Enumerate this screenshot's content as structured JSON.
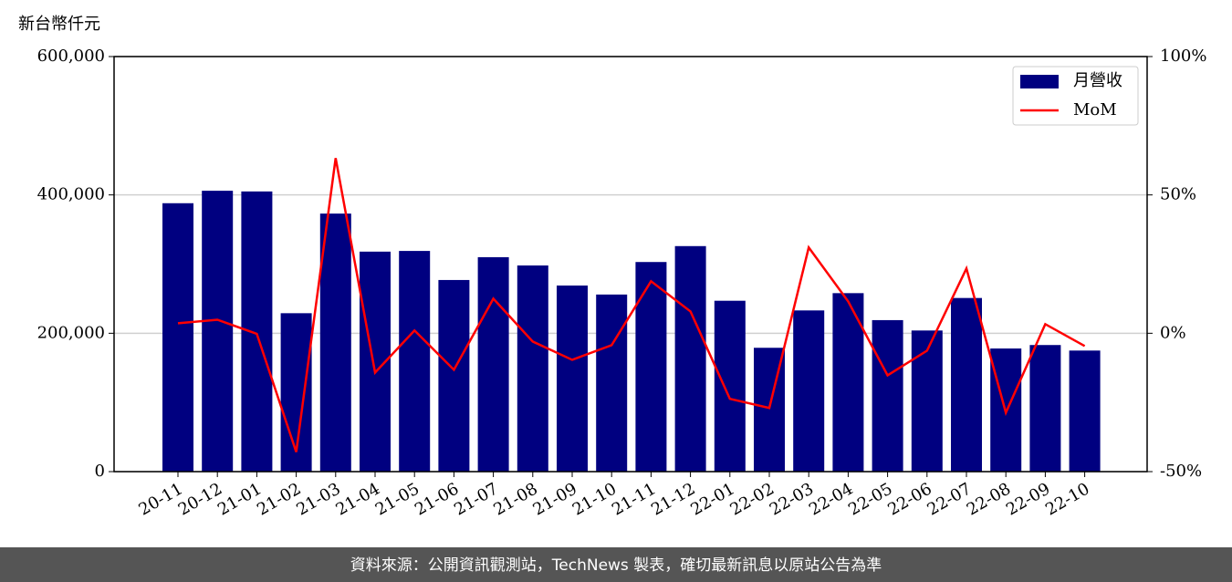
{
  "chart_data": {
    "type": "bar_line",
    "ylabel": "新台幣仟元",
    "footer": "資料來源：公開資訊觀測站，TechNews 製表，確切最新訊息以原站公告為準",
    "categories": [
      "20-11",
      "20-12",
      "21-01",
      "21-02",
      "21-03",
      "21-04",
      "21-05",
      "21-06",
      "21-07",
      "21-08",
      "21-09",
      "21-10",
      "21-11",
      "21-12",
      "22-01",
      "22-02",
      "22-03",
      "22-04",
      "22-05",
      "22-06",
      "22-07",
      "22-08",
      "22-09",
      "22-10"
    ],
    "series": [
      {
        "name": "月營收",
        "color": "#000080",
        "type": "bar",
        "values": [
          388000,
          406000,
          405000,
          229000,
          373000,
          318000,
          319000,
          277000,
          310000,
          298000,
          269000,
          256000,
          303000,
          326000,
          247000,
          179000,
          233000,
          258000,
          219000,
          204000,
          251000,
          178000,
          183000,
          175000
        ]
      },
      {
        "name": "MoM",
        "color": "#ff0000",
        "type": "line",
        "axis": "y2",
        "values": [
          3.6,
          4.9,
          -0.2,
          -42.9,
          63.3,
          -14.2,
          1.0,
          -13.2,
          12.5,
          -3.0,
          -9.6,
          -4.3,
          18.8,
          7.9,
          -23.7,
          -27.0,
          31.0,
          11.5,
          -15.2,
          -6.3,
          23.4,
          -28.7,
          3.3,
          -4.6
        ]
      }
    ],
    "ylim": [
      0,
      600000
    ],
    "yticks": [
      0,
      {
        "value": 200000,
        "label": "200,000"
      },
      {
        "value": 400000,
        "label": "400,000"
      },
      {
        "value": 600000,
        "label": "600,000"
      }
    ],
    "y2lim": [
      -50,
      100
    ],
    "y2ticks": [
      {
        "value": -50,
        "label": "-50%"
      },
      {
        "value": 0,
        "label": "0%"
      },
      {
        "value": 50,
        "label": "50%"
      },
      {
        "value": 100,
        "label": "100%"
      }
    ],
    "grid": true,
    "legend": "upper right"
  }
}
